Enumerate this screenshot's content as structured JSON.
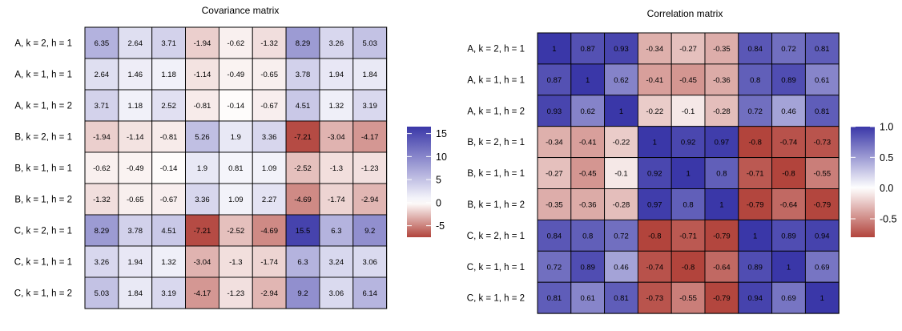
{
  "chart_data": [
    {
      "type": "heatmap",
      "title": "Covariance matrix",
      "rows": [
        "A, k = 2, h = 1",
        "A, k = 1, h = 1",
        "A, k = 1, h = 2",
        "B, k = 2, h = 1",
        "B, k = 1, h = 1",
        "B, k = 1, h = 2",
        "C, k = 2, h = 1",
        "C, k = 1, h = 1",
        "C, k = 1, h = 2"
      ],
      "values": [
        [
          6.35,
          2.64,
          3.71,
          -1.94,
          -0.62,
          -1.32,
          8.29,
          3.26,
          5.03
        ],
        [
          2.64,
          1.46,
          1.18,
          -1.14,
          -0.49,
          -0.65,
          3.78,
          1.94,
          1.84
        ],
        [
          3.71,
          1.18,
          2.52,
          -0.81,
          -0.14,
          -0.67,
          4.51,
          1.32,
          3.19
        ],
        [
          -1.94,
          -1.14,
          -0.81,
          5.26,
          1.9,
          3.36,
          -7.21,
          -3.04,
          -4.17
        ],
        [
          -0.62,
          -0.49,
          -0.14,
          1.9,
          0.81,
          1.09,
          -2.52,
          -1.3,
          -1.23
        ],
        [
          -1.32,
          -0.65,
          -0.67,
          3.36,
          1.09,
          2.27,
          -4.69,
          -1.74,
          -2.94
        ],
        [
          8.29,
          3.78,
          4.51,
          -7.21,
          -2.52,
          -4.69,
          15.5,
          6.3,
          9.2
        ],
        [
          3.26,
          1.94,
          1.32,
          -3.04,
          -1.3,
          -1.74,
          6.3,
          3.24,
          3.06
        ],
        [
          5.03,
          1.84,
          3.19,
          -4.17,
          -1.23,
          -2.94,
          9.2,
          3.06,
          6.14
        ]
      ],
      "legend": {
        "ticks": [
          15,
          10,
          5,
          0,
          -5
        ],
        "range": [
          -7.5,
          16.5
        ]
      },
      "colors": {
        "low": "#b2443c",
        "mid": "#ffffff",
        "high": "#3a37a8"
      }
    },
    {
      "type": "heatmap",
      "title": "Correlation matrix",
      "rows": [
        "A, k = 2, h = 1",
        "A, k = 1, h = 1",
        "A, k = 1, h = 2",
        "B, k = 2, h = 1",
        "B, k = 1, h = 1",
        "B, k = 1, h = 2",
        "C, k = 2, h = 1",
        "C, k = 1, h = 1",
        "C, k = 1, h = 2"
      ],
      "values": [
        [
          1,
          0.87,
          0.93,
          -0.34,
          -0.27,
          -0.35,
          0.84,
          0.72,
          0.81
        ],
        [
          0.87,
          1,
          0.62,
          -0.41,
          -0.45,
          -0.36,
          0.8,
          0.89,
          0.61
        ],
        [
          0.93,
          0.62,
          1,
          -0.22,
          -0.1,
          -0.28,
          0.72,
          0.46,
          0.81
        ],
        [
          -0.34,
          -0.41,
          -0.22,
          1,
          0.92,
          0.97,
          -0.8,
          -0.74,
          -0.73
        ],
        [
          -0.27,
          -0.45,
          -0.1,
          0.92,
          1,
          0.8,
          -0.71,
          -0.8,
          -0.55
        ],
        [
          -0.35,
          -0.36,
          -0.28,
          0.97,
          0.8,
          1,
          -0.79,
          -0.64,
          -0.79
        ],
        [
          0.84,
          0.8,
          0.72,
          -0.8,
          -0.71,
          -0.79,
          1,
          0.89,
          0.94
        ],
        [
          0.72,
          0.89,
          0.46,
          -0.74,
          -0.8,
          -0.64,
          0.89,
          1,
          0.69
        ],
        [
          0.81,
          0.61,
          0.81,
          -0.73,
          -0.55,
          -0.79,
          0.94,
          0.69,
          1
        ]
      ],
      "legend": {
        "ticks": [
          "1.0",
          "0.5",
          "0.0",
          "-0.5"
        ],
        "range": [
          -0.8,
          1
        ]
      },
      "colors": {
        "low": "#b2443c",
        "mid": "#ffffff",
        "high": "#3a37a8"
      }
    }
  ]
}
